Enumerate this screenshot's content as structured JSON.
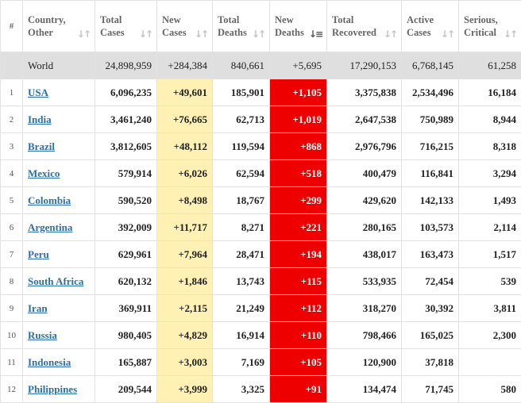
{
  "headers": {
    "rank": "#",
    "country": [
      "Country,",
      "Other"
    ],
    "total_cases": [
      "Total",
      "Cases"
    ],
    "new_cases": [
      "New",
      "Cases"
    ],
    "total_deaths": [
      "Total",
      "Deaths"
    ],
    "new_deaths": [
      "New",
      "Deaths"
    ],
    "total_recovered": [
      "Total",
      "Recovered"
    ],
    "active_cases": [
      "Active",
      "Cases"
    ],
    "serious_critical": [
      "Serious,",
      "Critical"
    ]
  },
  "world": {
    "country": "World",
    "total_cases": "24,898,959",
    "new_cases": "+284,384",
    "total_deaths": "840,661",
    "new_deaths": "+5,695",
    "total_recovered": "17,290,153",
    "active_cases": "6,768,145",
    "serious_critical": "61,258"
  },
  "rows": [
    {
      "rank": "1",
      "country": "USA",
      "total_cases": "6,096,235",
      "new_cases": "+49,601",
      "total_deaths": "185,901",
      "new_deaths": "+1,105",
      "total_recovered": "3,375,838",
      "active_cases": "2,534,496",
      "serious_critical": "16,184"
    },
    {
      "rank": "2",
      "country": "India",
      "total_cases": "3,461,240",
      "new_cases": "+76,665",
      "total_deaths": "62,713",
      "new_deaths": "+1,019",
      "total_recovered": "2,647,538",
      "active_cases": "750,989",
      "serious_critical": "8,944"
    },
    {
      "rank": "3",
      "country": "Brazil",
      "total_cases": "3,812,605",
      "new_cases": "+48,112",
      "total_deaths": "119,594",
      "new_deaths": "+868",
      "total_recovered": "2,976,796",
      "active_cases": "716,215",
      "serious_critical": "8,318"
    },
    {
      "rank": "4",
      "country": "Mexico",
      "total_cases": "579,914",
      "new_cases": "+6,026",
      "total_deaths": "62,594",
      "new_deaths": "+518",
      "total_recovered": "400,479",
      "active_cases": "116,841",
      "serious_critical": "3,294"
    },
    {
      "rank": "5",
      "country": "Colombia",
      "total_cases": "590,520",
      "new_cases": "+8,498",
      "total_deaths": "18,767",
      "new_deaths": "+299",
      "total_recovered": "429,620",
      "active_cases": "142,133",
      "serious_critical": "1,493"
    },
    {
      "rank": "6",
      "country": "Argentina",
      "total_cases": "392,009",
      "new_cases": "+11,717",
      "total_deaths": "8,271",
      "new_deaths": "+221",
      "total_recovered": "280,165",
      "active_cases": "103,573",
      "serious_critical": "2,114"
    },
    {
      "rank": "7",
      "country": "Peru",
      "total_cases": "629,961",
      "new_cases": "+7,964",
      "total_deaths": "28,471",
      "new_deaths": "+194",
      "total_recovered": "438,017",
      "active_cases": "163,473",
      "serious_critical": "1,517"
    },
    {
      "rank": "8",
      "country": "South Africa",
      "total_cases": "620,132",
      "new_cases": "+1,846",
      "total_deaths": "13,743",
      "new_deaths": "+115",
      "total_recovered": "533,935",
      "active_cases": "72,454",
      "serious_critical": "539"
    },
    {
      "rank": "9",
      "country": "Iran",
      "total_cases": "369,911",
      "new_cases": "+2,115",
      "total_deaths": "21,249",
      "new_deaths": "+112",
      "total_recovered": "318,270",
      "active_cases": "30,392",
      "serious_critical": "3,811"
    },
    {
      "rank": "10",
      "country": "Russia",
      "total_cases": "980,405",
      "new_cases": "+4,829",
      "total_deaths": "16,914",
      "new_deaths": "+110",
      "total_recovered": "798,466",
      "active_cases": "165,025",
      "serious_critical": "2,300"
    },
    {
      "rank": "11",
      "country": "Indonesia",
      "total_cases": "165,887",
      "new_cases": "+3,003",
      "total_deaths": "7,169",
      "new_deaths": "+105",
      "total_recovered": "120,900",
      "active_cases": "37,818",
      "serious_critical": ""
    },
    {
      "rank": "12",
      "country": "Philippines",
      "total_cases": "209,544",
      "new_cases": "+3,999",
      "total_deaths": "3,325",
      "new_deaths": "+91",
      "total_recovered": "134,474",
      "active_cases": "71,745",
      "serious_critical": "580"
    }
  ],
  "sort": {
    "column": "new_deaths",
    "direction": "descending"
  },
  "icons": {
    "sort": "sort-arrows-icon",
    "sort_active": "sort-descending-icon"
  },
  "colors": {
    "world_row_bg": "#dfdfdf",
    "new_cases_bg": "#fff0b3",
    "new_deaths_bg": "#ee0000",
    "link": "#2a70a8"
  }
}
